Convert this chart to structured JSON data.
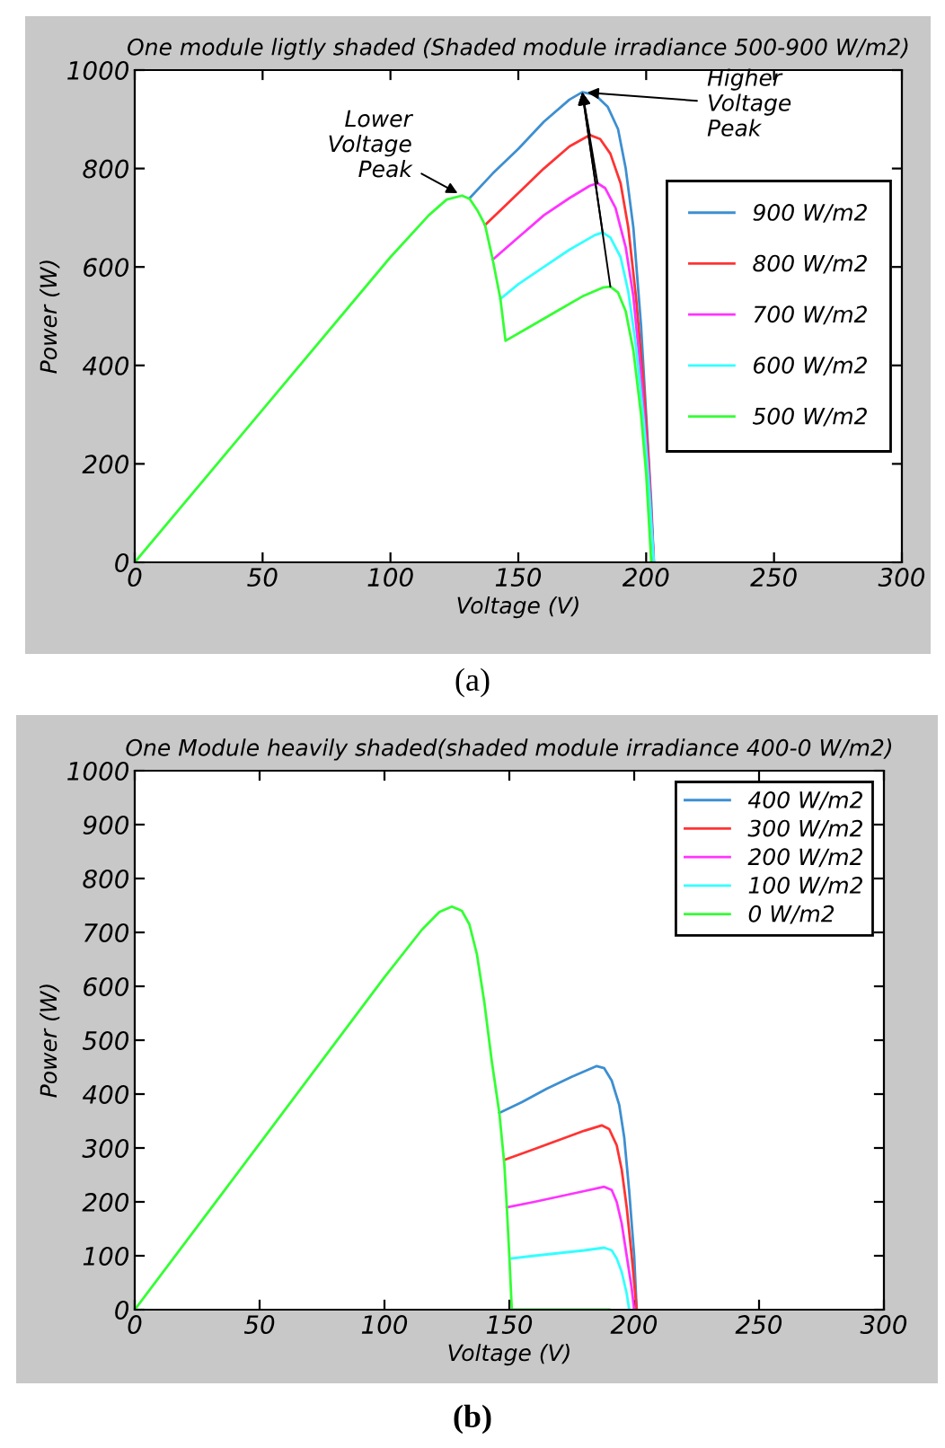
{
  "chart_data": [
    {
      "type": "line",
      "title": "One module ligtly shaded (Shaded module irradiance 500-900 W/m2)",
      "xlabel": "Voltage (V)",
      "ylabel": "Power (W)",
      "xlim": [
        0,
        300
      ],
      "xticks": [
        0,
        50,
        100,
        150,
        200,
        250,
        300
      ],
      "ylim": [
        0,
        1000
      ],
      "yticks": [
        0,
        200,
        400,
        600,
        800,
        1000
      ],
      "grid": false,
      "legend": "right",
      "marker": "none",
      "line_style": "solid",
      "series": [
        {
          "name": "900 W/m2",
          "color": "#3d8fd1",
          "x": [
            131,
            140,
            150,
            160,
            170,
            175,
            180,
            185,
            189,
            192,
            195,
            198,
            200,
            202,
            203
          ],
          "values": [
            740,
            790,
            840,
            895,
            940,
            955,
            950,
            925,
            880,
            800,
            680,
            480,
            300,
            120,
            0
          ]
        },
        {
          "name": "800 W/m2",
          "color": "#ff3333",
          "x": [
            137,
            150,
            160,
            170,
            178,
            182,
            186,
            190,
            193,
            196,
            199,
            201,
            203
          ],
          "values": [
            685,
            750,
            800,
            845,
            868,
            860,
            830,
            770,
            680,
            540,
            360,
            200,
            0
          ]
        },
        {
          "name": "700 W/m2",
          "color": "#ff33ff",
          "x": [
            140,
            150,
            160,
            170,
            178,
            181,
            184,
            188,
            192,
            195,
            198,
            201,
            203
          ],
          "values": [
            615,
            660,
            705,
            740,
            765,
            770,
            760,
            720,
            640,
            540,
            380,
            180,
            0
          ]
        },
        {
          "name": "600 W/m2",
          "color": "#33ffff",
          "x": [
            143,
            150,
            160,
            170,
            180,
            183,
            186,
            190,
            193,
            196,
            199,
            201,
            203
          ],
          "values": [
            535,
            565,
            600,
            635,
            665,
            670,
            660,
            620,
            550,
            440,
            290,
            160,
            0
          ]
        },
        {
          "name": "500 W/m2",
          "color": "#33ff33",
          "x": [
            0,
            50,
            100,
            115,
            122,
            128,
            131,
            134,
            137,
            140,
            143,
            145,
            155,
            165,
            175,
            183,
            186,
            189,
            192,
            195,
            198,
            200,
            202
          ],
          "values": [
            0,
            310,
            620,
            705,
            737,
            745,
            738,
            715,
            685,
            615,
            535,
            450,
            480,
            510,
            540,
            558,
            560,
            548,
            510,
            430,
            300,
            180,
            0
          ]
        }
      ],
      "annotations": [
        {
          "text": "Lower\nVoltage\nPeak",
          "x": 128,
          "y": 745
        },
        {
          "text": "Higher\nVoltage\nPeak",
          "x": 175,
          "y": 955
        },
        "(a)"
      ]
    },
    {
      "type": "line",
      "title": "One Module heavily shaded(shaded module irradiance 400-0 W/m2)",
      "xlabel": "Voltage (V)",
      "ylabel": "Power (W)",
      "xlim": [
        0,
        300
      ],
      "xticks": [
        0,
        50,
        100,
        150,
        200,
        250,
        300
      ],
      "ylim": [
        0,
        1000
      ],
      "yticks": [
        0,
        100,
        200,
        300,
        400,
        500,
        600,
        700,
        800,
        900,
        1000
      ],
      "grid": false,
      "legend": "top right",
      "marker": "none",
      "line_style": "solid",
      "series": [
        {
          "name": "400 W/m2",
          "color": "#3d8fd1",
          "x": [
            146,
            155,
            165,
            175,
            185,
            188,
            191,
            194,
            196,
            198,
            200,
            201
          ],
          "values": [
            365,
            385,
            410,
            432,
            452,
            448,
            425,
            380,
            320,
            220,
            100,
            0
          ]
        },
        {
          "name": "300 W/m2",
          "color": "#ff3333",
          "x": [
            148,
            160,
            170,
            180,
            187,
            190,
            193,
            195,
            197,
            199,
            201
          ],
          "values": [
            278,
            298,
            315,
            332,
            342,
            335,
            305,
            260,
            190,
            100,
            0
          ]
        },
        {
          "name": "200 W/m2",
          "color": "#ff33ff",
          "x": [
            149,
            160,
            170,
            180,
            188,
            191,
            193,
            195,
            197,
            199,
            200
          ],
          "values": [
            190,
            200,
            210,
            220,
            228,
            222,
            200,
            160,
            100,
            40,
            0
          ]
        },
        {
          "name": "100 W/m2",
          "color": "#33ffff",
          "x": [
            151,
            160,
            170,
            180,
            188,
            191,
            193,
            195,
            197,
            198
          ],
          "values": [
            95,
            100,
            105,
            110,
            115,
            110,
            95,
            70,
            30,
            0
          ]
        },
        {
          "name": "0 W/m2",
          "color": "#33ff33",
          "x": [
            0,
            50,
            100,
            115,
            122,
            127,
            131,
            134,
            137,
            140,
            143,
            146,
            148,
            149,
            150,
            151,
            190
          ],
          "values": [
            0,
            308,
            617,
            705,
            738,
            748,
            740,
            715,
            660,
            570,
            460,
            365,
            270,
            190,
            100,
            0,
            0
          ]
        }
      ],
      "annotations": [
        "(b)"
      ]
    }
  ]
}
